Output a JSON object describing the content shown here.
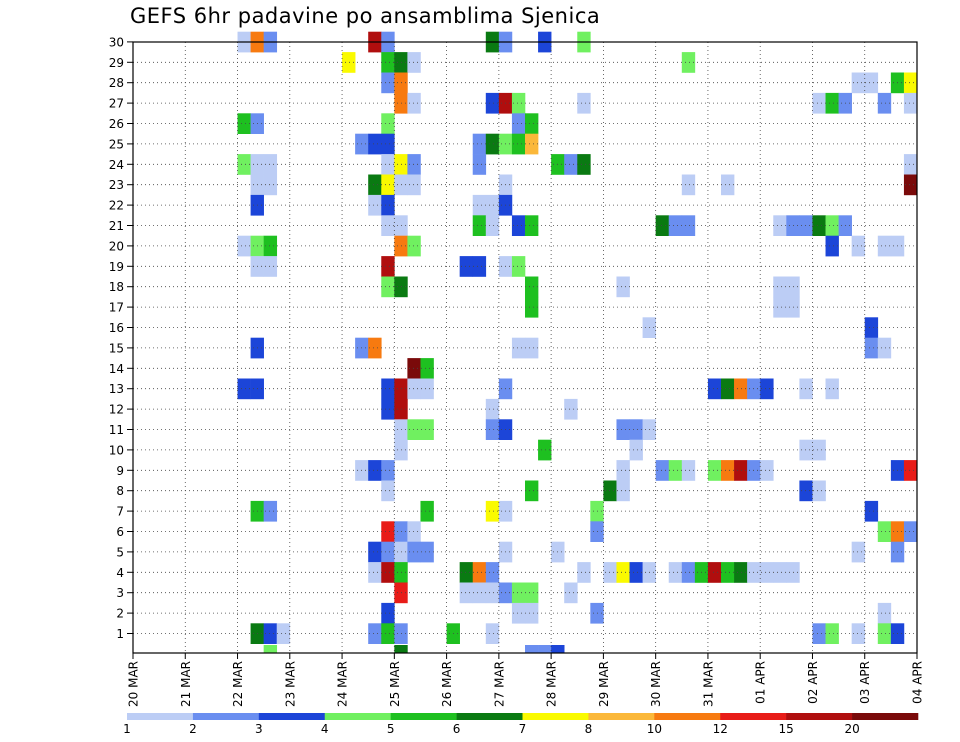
{
  "title": "GEFS 6hr padavine po ansamblima Sjenica",
  "chart_data": {
    "type": "heatmap",
    "title": "GEFS 6hr padavine po ansamblima Sjenica",
    "xlabel": "",
    "ylabel": "",
    "x_tick_labels": [
      "20 MAR",
      "21 MAR",
      "22 MAR",
      "23 MAR",
      "24 MAR",
      "25 MAR",
      "26 MAR",
      "27 MAR",
      "28 MAR",
      "29 MAR",
      "30 MAR",
      "31 MAR",
      "01 APR",
      "02 APR",
      "03 APR",
      "04 APR"
    ],
    "x_unit": "6-hour step from 20 MAR 00Z (4 steps per day)",
    "xlim": [
      0,
      60
    ],
    "y_members": [
      1,
      2,
      3,
      4,
      5,
      6,
      7,
      8,
      9,
      10,
      11,
      12,
      13,
      14,
      15,
      16,
      17,
      18,
      19,
      20,
      21,
      22,
      23,
      24,
      25,
      26,
      27,
      28,
      29,
      30
    ],
    "ylim": [
      0,
      30
    ],
    "grid": true,
    "colorbar": {
      "placement": "bottom",
      "labels": [
        "1",
        "2",
        "3",
        "4",
        "5",
        "6",
        "7",
        "8",
        "10",
        "12",
        "15",
        "20"
      ],
      "colors": [
        "#bccdf5",
        "#6a8ef0",
        "#1c45d8",
        "#70f060",
        "#1ec020",
        "#0a7a12",
        "#fafa00",
        "#fbb83a",
        "#f77a10",
        "#e81c18",
        "#b00e0e",
        "#7a0a0a"
      ]
    },
    "cells": [
      [
        8,
        30,
        1
      ],
      [
        9,
        30,
        9
      ],
      [
        10,
        30,
        2
      ],
      [
        18,
        30,
        11
      ],
      [
        19,
        30,
        2
      ],
      [
        27,
        30,
        6
      ],
      [
        28,
        30,
        2
      ],
      [
        31,
        30,
        3
      ],
      [
        34,
        30,
        4
      ],
      [
        16,
        29,
        7
      ],
      [
        19,
        29,
        5
      ],
      [
        20,
        29,
        6
      ],
      [
        21,
        29,
        1
      ],
      [
        42,
        29,
        4
      ],
      [
        19,
        28,
        2
      ],
      [
        20,
        28,
        9
      ],
      [
        55,
        28,
        1
      ],
      [
        56,
        28,
        1
      ],
      [
        58,
        28,
        5
      ],
      [
        59,
        28,
        7
      ],
      [
        20,
        27,
        9
      ],
      [
        21,
        27,
        1
      ],
      [
        27,
        27,
        3
      ],
      [
        28,
        27,
        11
      ],
      [
        29,
        27,
        4
      ],
      [
        34,
        27,
        1
      ],
      [
        52,
        27,
        1
      ],
      [
        53,
        27,
        5
      ],
      [
        54,
        27,
        2
      ],
      [
        57,
        27,
        2
      ],
      [
        59,
        27,
        1
      ],
      [
        8,
        26,
        5
      ],
      [
        9,
        26,
        2
      ],
      [
        19,
        26,
        4
      ],
      [
        29,
        26,
        2
      ],
      [
        30,
        26,
        5
      ],
      [
        17,
        25,
        2
      ],
      [
        18,
        25,
        3
      ],
      [
        19,
        25,
        3
      ],
      [
        26,
        25,
        2
      ],
      [
        27,
        25,
        6
      ],
      [
        28,
        25,
        4
      ],
      [
        29,
        25,
        5
      ],
      [
        30,
        25,
        8
      ],
      [
        8,
        24,
        4
      ],
      [
        9,
        24,
        1
      ],
      [
        10,
        24,
        1
      ],
      [
        19,
        24,
        1
      ],
      [
        20,
        24,
        7
      ],
      [
        21,
        24,
        2
      ],
      [
        26,
        24,
        2
      ],
      [
        32,
        24,
        5
      ],
      [
        33,
        24,
        2
      ],
      [
        34,
        24,
        6
      ],
      [
        59,
        24,
        1
      ],
      [
        9,
        23,
        1
      ],
      [
        10,
        23,
        1
      ],
      [
        18,
        23,
        6
      ],
      [
        19,
        23,
        7
      ],
      [
        20,
        23,
        1
      ],
      [
        21,
        23,
        1
      ],
      [
        28,
        23,
        1
      ],
      [
        42,
        23,
        1
      ],
      [
        45,
        23,
        1
      ],
      [
        59,
        23,
        12
      ],
      [
        9,
        22,
        3
      ],
      [
        18,
        22,
        1
      ],
      [
        19,
        22,
        3
      ],
      [
        26,
        22,
        1
      ],
      [
        27,
        22,
        1
      ],
      [
        28,
        22,
        3
      ],
      [
        19,
        21,
        1
      ],
      [
        20,
        21,
        1
      ],
      [
        26,
        21,
        5
      ],
      [
        27,
        21,
        1
      ],
      [
        29,
        21,
        3
      ],
      [
        30,
        21,
        5
      ],
      [
        40,
        21,
        6
      ],
      [
        41,
        21,
        2
      ],
      [
        42,
        21,
        2
      ],
      [
        49,
        21,
        1
      ],
      [
        50,
        21,
        2
      ],
      [
        51,
        21,
        2
      ],
      [
        52,
        21,
        6
      ],
      [
        53,
        21,
        4
      ],
      [
        54,
        21,
        2
      ],
      [
        8,
        20,
        1
      ],
      [
        9,
        20,
        4
      ],
      [
        10,
        20,
        5
      ],
      [
        20,
        20,
        9
      ],
      [
        21,
        20,
        4
      ],
      [
        53,
        20,
        3
      ],
      [
        55,
        20,
        1
      ],
      [
        57,
        20,
        1
      ],
      [
        58,
        20,
        1
      ],
      [
        9,
        19,
        1
      ],
      [
        10,
        19,
        1
      ],
      [
        19,
        19,
        11
      ],
      [
        25,
        19,
        3
      ],
      [
        26,
        19,
        3
      ],
      [
        28,
        19,
        1
      ],
      [
        29,
        19,
        4
      ],
      [
        19,
        18,
        4
      ],
      [
        20,
        18,
        6
      ],
      [
        30,
        18,
        5
      ],
      [
        37,
        18,
        1
      ],
      [
        49,
        18,
        1
      ],
      [
        50,
        18,
        1
      ],
      [
        30,
        17,
        5
      ],
      [
        49,
        17,
        1
      ],
      [
        50,
        17,
        1
      ],
      [
        39,
        16,
        1
      ],
      [
        56,
        16,
        3
      ],
      [
        9,
        15,
        3
      ],
      [
        17,
        15,
        2
      ],
      [
        18,
        15,
        9
      ],
      [
        29,
        15,
        1
      ],
      [
        30,
        15,
        1
      ],
      [
        56,
        15,
        2
      ],
      [
        57,
        15,
        1
      ],
      [
        21,
        14,
        12
      ],
      [
        22,
        14,
        5
      ],
      [
        8,
        13,
        3
      ],
      [
        9,
        13,
        3
      ],
      [
        19,
        13,
        3
      ],
      [
        20,
        13,
        11
      ],
      [
        21,
        13,
        1
      ],
      [
        22,
        13,
        1
      ],
      [
        28,
        13,
        2
      ],
      [
        44,
        13,
        3
      ],
      [
        45,
        13,
        6
      ],
      [
        46,
        13,
        9
      ],
      [
        47,
        13,
        2
      ],
      [
        48,
        13,
        3
      ],
      [
        51,
        13,
        1
      ],
      [
        53,
        13,
        1
      ],
      [
        19,
        12,
        3
      ],
      [
        20,
        12,
        11
      ],
      [
        27,
        12,
        1
      ],
      [
        33,
        12,
        1
      ],
      [
        20,
        11,
        1
      ],
      [
        21,
        11,
        4
      ],
      [
        22,
        11,
        4
      ],
      [
        27,
        11,
        2
      ],
      [
        28,
        11,
        3
      ],
      [
        37,
        11,
        2
      ],
      [
        38,
        11,
        2
      ],
      [
        39,
        11,
        1
      ],
      [
        20,
        10,
        1
      ],
      [
        31,
        10,
        5
      ],
      [
        38,
        10,
        1
      ],
      [
        51,
        10,
        1
      ],
      [
        52,
        10,
        1
      ],
      [
        17,
        9,
        1
      ],
      [
        18,
        9,
        3
      ],
      [
        19,
        9,
        2
      ],
      [
        37,
        9,
        1
      ],
      [
        40,
        9,
        2
      ],
      [
        41,
        9,
        4
      ],
      [
        42,
        9,
        1
      ],
      [
        44,
        9,
        4
      ],
      [
        45,
        9,
        9
      ],
      [
        46,
        9,
        11
      ],
      [
        47,
        9,
        2
      ],
      [
        48,
        9,
        1
      ],
      [
        58,
        9,
        3
      ],
      [
        59,
        9,
        10
      ],
      [
        19,
        8,
        1
      ],
      [
        30,
        8,
        5
      ],
      [
        36,
        8,
        6
      ],
      [
        37,
        8,
        1
      ],
      [
        51,
        8,
        3
      ],
      [
        52,
        8,
        1
      ],
      [
        9,
        7,
        5
      ],
      [
        10,
        7,
        2
      ],
      [
        22,
        7,
        5
      ],
      [
        27,
        7,
        7
      ],
      [
        28,
        7,
        1
      ],
      [
        35,
        7,
        4
      ],
      [
        56,
        7,
        3
      ],
      [
        19,
        6,
        10
      ],
      [
        20,
        6,
        2
      ],
      [
        21,
        6,
        1
      ],
      [
        35,
        6,
        2
      ],
      [
        57,
        6,
        4
      ],
      [
        58,
        6,
        9
      ],
      [
        59,
        6,
        2
      ],
      [
        18,
        5,
        3
      ],
      [
        19,
        5,
        2
      ],
      [
        20,
        5,
        1
      ],
      [
        21,
        5,
        2
      ],
      [
        22,
        5,
        2
      ],
      [
        28,
        5,
        1
      ],
      [
        32,
        5,
        1
      ],
      [
        55,
        5,
        1
      ],
      [
        58,
        5,
        2
      ],
      [
        18,
        4,
        1
      ],
      [
        19,
        4,
        11
      ],
      [
        20,
        4,
        5
      ],
      [
        25,
        4,
        6
      ],
      [
        26,
        4,
        9
      ],
      [
        27,
        4,
        2
      ],
      [
        34,
        4,
        1
      ],
      [
        36,
        4,
        1
      ],
      [
        37,
        4,
        7
      ],
      [
        38,
        4,
        3
      ],
      [
        39,
        4,
        1
      ],
      [
        41,
        4,
        1
      ],
      [
        42,
        4,
        2
      ],
      [
        43,
        4,
        5
      ],
      [
        44,
        4,
        11
      ],
      [
        45,
        4,
        5
      ],
      [
        46,
        4,
        6
      ],
      [
        47,
        4,
        1
      ],
      [
        48,
        4,
        1
      ],
      [
        49,
        4,
        1
      ],
      [
        50,
        4,
        1
      ],
      [
        20,
        3,
        10
      ],
      [
        25,
        3,
        1
      ],
      [
        26,
        3,
        1
      ],
      [
        27,
        3,
        1
      ],
      [
        28,
        3,
        2
      ],
      [
        29,
        3,
        4
      ],
      [
        30,
        3,
        4
      ],
      [
        33,
        3,
        1
      ],
      [
        19,
        2,
        3
      ],
      [
        29,
        2,
        1
      ],
      [
        30,
        2,
        1
      ],
      [
        35,
        2,
        2
      ],
      [
        57,
        2,
        1
      ],
      [
        9,
        1,
        6
      ],
      [
        10,
        1,
        3
      ],
      [
        11,
        1,
        1
      ],
      [
        18,
        1,
        2
      ],
      [
        19,
        1,
        5
      ],
      [
        20,
        1,
        2
      ],
      [
        24,
        1,
        5
      ],
      [
        27,
        1,
        1
      ],
      [
        52,
        1,
        2
      ],
      [
        53,
        1,
        4
      ],
      [
        55,
        1,
        1
      ],
      [
        57,
        1,
        4
      ],
      [
        58,
        1,
        3
      ]
    ],
    "cells_below_axis": [
      [
        10,
        4
      ],
      [
        20,
        6
      ],
      [
        30,
        2
      ],
      [
        31,
        2
      ],
      [
        32,
        3
      ]
    ]
  }
}
